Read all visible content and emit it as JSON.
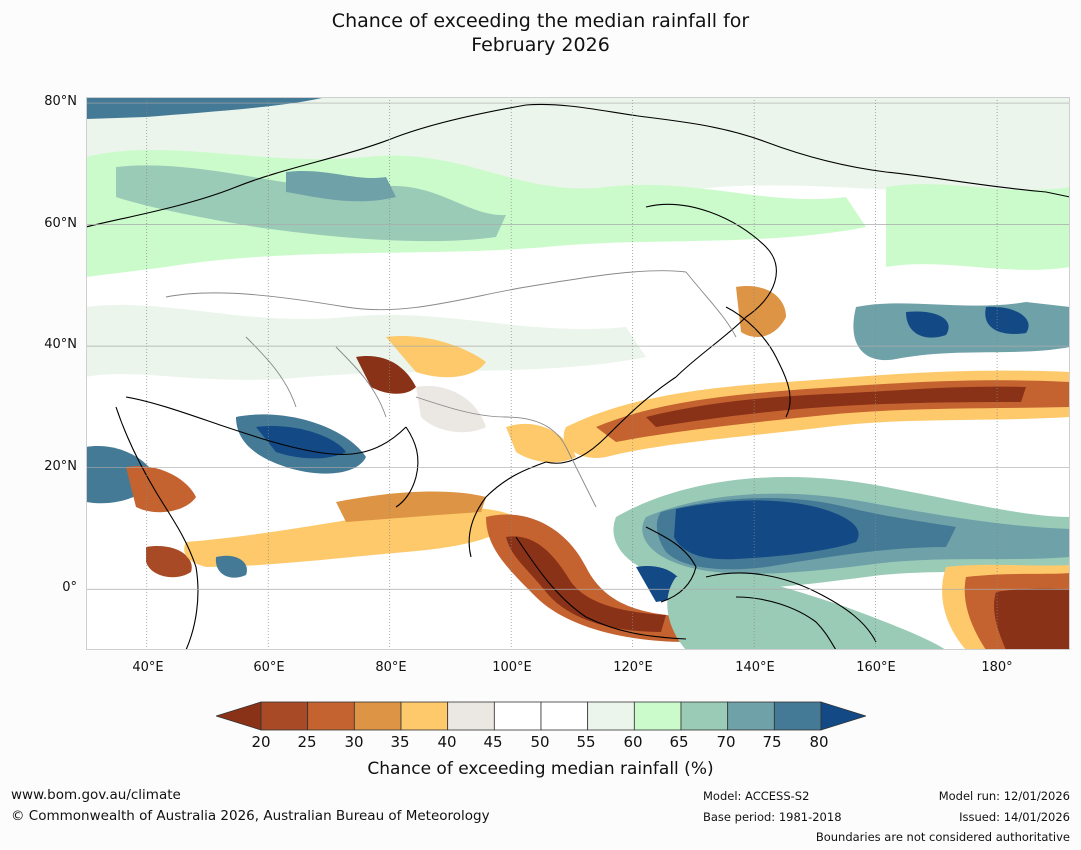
{
  "title": {
    "line1": "Chance of exceeding the median rainfall for",
    "line2": "February 2026"
  },
  "map": {
    "lat_labels": [
      "80°N",
      "60°N",
      "40°N",
      "20°N",
      "0°"
    ],
    "lon_labels": [
      "40°E",
      "60°E",
      "80°E",
      "100°E",
      "120°E",
      "140°E",
      "160°E",
      "180°"
    ],
    "extent": {
      "lon_min": 30,
      "lon_max": 192,
      "lat_min": -10,
      "lat_max": 81
    }
  },
  "colorbar": {
    "ticks": [
      "20",
      "25",
      "30",
      "35",
      "40",
      "45",
      "50",
      "55",
      "60",
      "65",
      "70",
      "75",
      "80"
    ],
    "colors": [
      "#8a3218",
      "#a94a26",
      "#c56330",
      "#dd9445",
      "#fec96a",
      "#ebe8e4",
      "#ffffff",
      "#ffffff",
      "#ebf5eb",
      "#cbfbcb",
      "#9acbb7",
      "#6fa1a8",
      "#447a95",
      "#134a86"
    ],
    "label": "Chance of exceeding median rainfall (%)"
  },
  "footer": {
    "website": "www.bom.gov.au/climate",
    "copyright": "© Commonwealth of Australia 2026, Australian Bureau of Meteorology",
    "model": "Model: ACCESS-S2",
    "base_period": "Base period: 1981-2018",
    "model_run": "Model run: 12/01/2026",
    "issued": "Issued: 14/01/2026",
    "disclaimer": "Boundaries are not considered authoritative"
  }
}
